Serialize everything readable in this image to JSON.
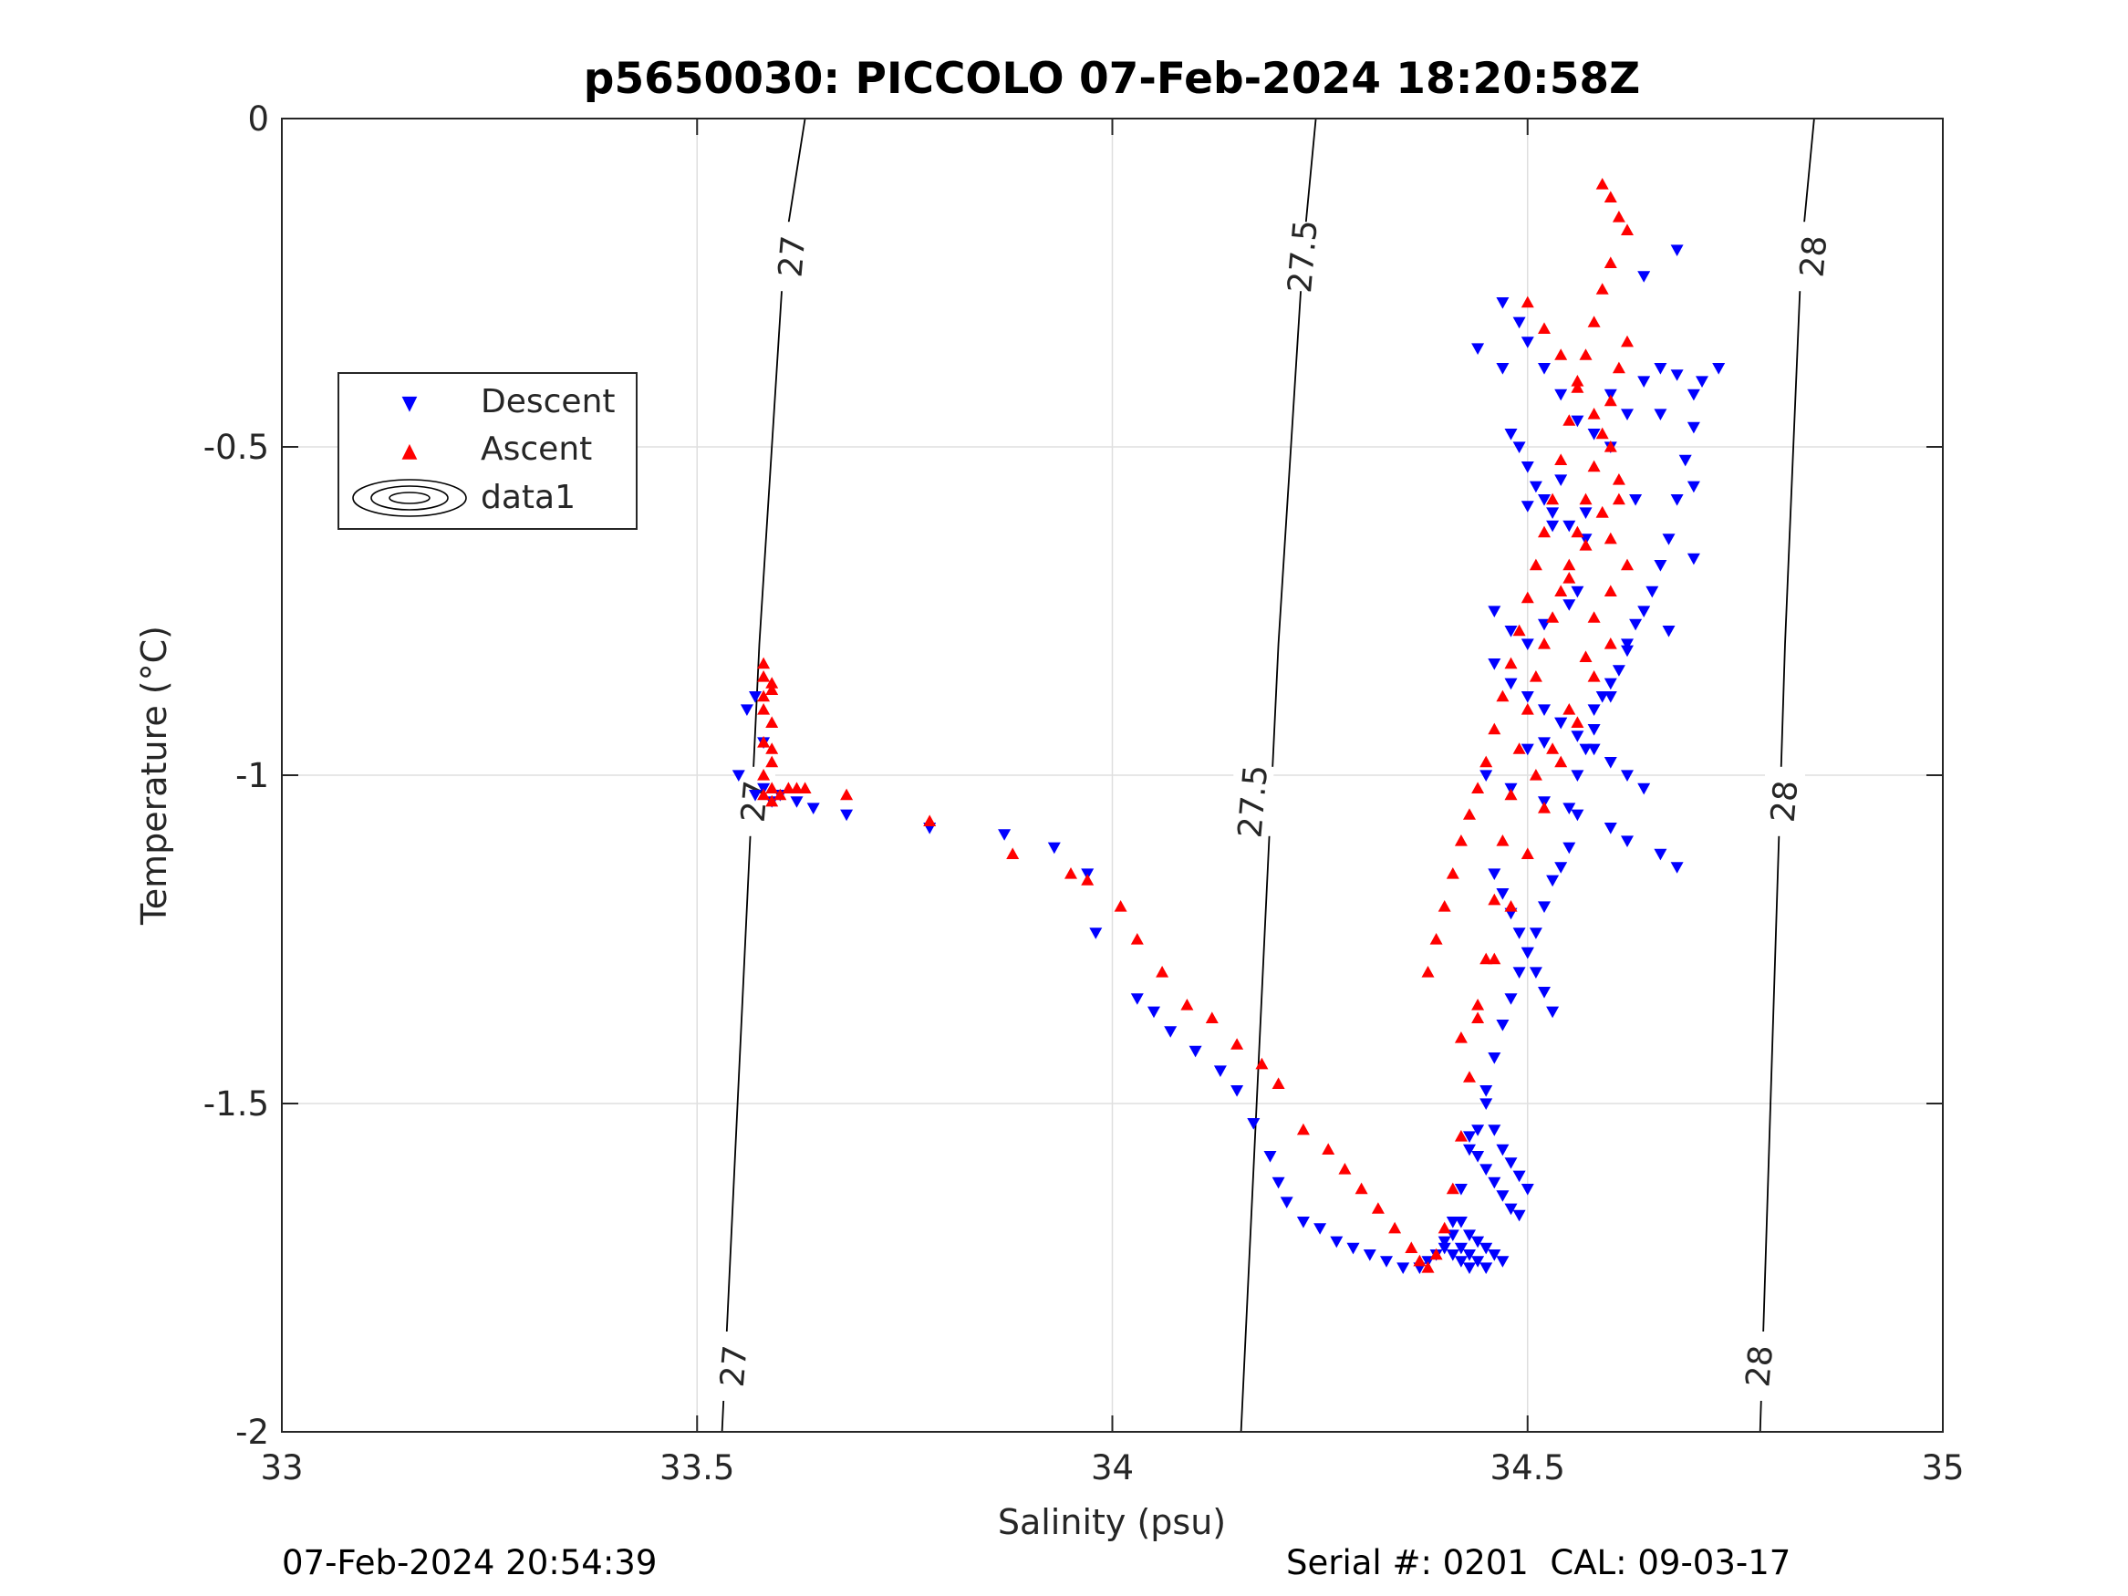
{
  "chart_data": {
    "type": "scatter",
    "title": "p5650030: PICCOLO 07-Feb-2024 18:20:58Z",
    "xlabel": "Salinity (psu)",
    "ylabel": "Temperature (°C)",
    "xlim": [
      33,
      35
    ],
    "ylim": [
      -2,
      0
    ],
    "xticks": [
      33,
      33.5,
      34,
      34.5,
      35
    ],
    "xtick_labels": [
      "33",
      "33.5",
      "34",
      "34.5",
      "35"
    ],
    "yticks": [
      0,
      -0.5,
      -1,
      -1.5,
      -2
    ],
    "ytick_labels": [
      "0",
      "-0.5",
      "-1",
      "-1.5",
      "-2"
    ],
    "grid": true,
    "legend_position": "upper-left",
    "series": [
      {
        "name": "Descent",
        "marker": "triangle-down",
        "color": "#0000ff",
        "x": [
          33.55,
          33.56,
          33.57,
          33.57,
          33.58,
          33.58,
          33.59,
          33.6,
          33.62,
          33.64,
          33.68,
          33.78,
          33.87,
          33.93,
          33.97,
          33.98,
          34.03,
          34.05,
          34.07,
          34.1,
          34.13,
          34.15,
          34.17,
          34.19,
          34.2,
          34.21,
          34.23,
          34.25,
          34.27,
          34.29,
          34.31,
          34.33,
          34.35,
          34.37,
          34.38,
          34.39,
          34.4,
          34.41,
          34.42,
          34.43,
          34.44,
          34.45,
          34.46,
          34.47,
          34.48,
          34.49,
          34.5,
          34.51,
          34.52,
          34.53,
          34.54,
          34.55,
          34.55,
          34.56,
          34.57,
          34.58,
          34.59,
          34.6,
          34.61,
          34.62,
          34.63,
          34.64,
          34.65,
          34.66,
          34.67,
          34.68,
          34.69,
          34.7,
          34.7,
          34.71,
          34.73,
          34.47,
          34.49,
          34.5,
          34.52,
          34.54,
          34.56,
          34.58,
          34.6,
          34.62,
          34.64,
          34.66,
          34.68,
          34.49,
          34.5,
          34.51,
          34.52,
          34.53,
          34.55,
          34.57,
          34.46,
          34.48,
          34.5,
          34.52,
          34.54,
          34.56,
          34.58,
          34.6,
          34.62,
          34.64,
          34.46,
          34.47,
          34.48,
          34.49,
          34.5,
          34.51,
          34.52,
          34.53,
          34.45,
          34.46,
          34.47,
          34.48,
          34.49,
          34.5,
          34.43,
          34.44,
          34.45,
          34.46,
          34.47,
          34.48,
          34.49,
          34.42,
          34.43,
          34.44,
          34.45,
          34.46,
          34.47,
          34.41,
          34.42,
          34.43,
          34.44,
          34.45,
          34.4,
          34.41,
          34.42,
          34.43,
          34.46,
          34.48,
          34.5,
          34.52,
          34.55,
          34.5,
          34.52,
          34.54,
          34.58,
          34.6,
          34.45,
          34.48,
          34.52,
          34.56,
          34.6,
          34.62,
          34.66,
          34.68,
          34.44,
          34.47,
          34.53,
          34.57,
          34.63,
          34.7,
          34.66,
          34.6,
          34.54,
          34.5,
          34.48,
          34.56,
          34.62,
          34.67,
          34.7,
          34.68,
          34.64
        ],
        "y": [
          -1.0,
          -0.9,
          -0.88,
          -1.03,
          -0.95,
          -1.02,
          -1.04,
          -1.03,
          -1.04,
          -1.05,
          -1.06,
          -1.08,
          -1.09,
          -1.11,
          -1.15,
          -1.24,
          -1.34,
          -1.36,
          -1.39,
          -1.42,
          -1.45,
          -1.48,
          -1.53,
          -1.58,
          -1.62,
          -1.65,
          -1.68,
          -1.69,
          -1.71,
          -1.72,
          -1.73,
          -1.74,
          -1.75,
          -1.75,
          -1.74,
          -1.73,
          -1.71,
          -1.68,
          -1.63,
          -1.57,
          -1.54,
          -1.48,
          -1.43,
          -1.38,
          -1.34,
          -1.3,
          -1.27,
          -1.24,
          -1.2,
          -1.16,
          -1.14,
          -1.11,
          -1.05,
          -1.0,
          -0.96,
          -0.93,
          -0.88,
          -0.86,
          -0.84,
          -0.8,
          -0.77,
          -0.75,
          -0.72,
          -0.68,
          -0.64,
          -0.58,
          -0.52,
          -0.47,
          -0.42,
          -0.4,
          -0.38,
          -0.28,
          -0.31,
          -0.34,
          -0.38,
          -0.42,
          -0.46,
          -0.48,
          -0.5,
          -0.45,
          -0.4,
          -0.38,
          -0.39,
          -0.5,
          -0.53,
          -0.56,
          -0.58,
          -0.6,
          -0.62,
          -0.64,
          -0.83,
          -0.86,
          -0.88,
          -0.9,
          -0.92,
          -0.94,
          -0.96,
          -0.98,
          -1.0,
          -1.02,
          -1.15,
          -1.18,
          -1.21,
          -1.24,
          -1.27,
          -1.3,
          -1.33,
          -1.36,
          -1.5,
          -1.54,
          -1.57,
          -1.59,
          -1.61,
          -1.63,
          -1.55,
          -1.58,
          -1.6,
          -1.62,
          -1.64,
          -1.66,
          -1.67,
          -1.68,
          -1.7,
          -1.71,
          -1.72,
          -1.73,
          -1.74,
          -1.7,
          -1.72,
          -1.73,
          -1.74,
          -1.75,
          -1.72,
          -1.73,
          -1.74,
          -1.75,
          -0.75,
          -0.78,
          -0.8,
          -0.77,
          -0.74,
          -0.96,
          -0.95,
          -0.92,
          -0.9,
          -0.88,
          -1.0,
          -1.02,
          -1.04,
          -1.06,
          -1.08,
          -1.1,
          -1.12,
          -1.14,
          -0.35,
          -0.38,
          -0.62,
          -0.6,
          -0.58,
          -0.56,
          -0.45,
          -0.42,
          -0.55,
          -0.59,
          -0.48,
          -0.72,
          -0.81,
          -0.78,
          -0.67,
          -0.2,
          -0.24
        ]
      },
      {
        "name": "Ascent",
        "marker": "triangle-up",
        "color": "#ff0000",
        "x": [
          33.58,
          33.59,
          33.58,
          33.59,
          33.58,
          33.59,
          33.58,
          33.59,
          33.58,
          33.59,
          33.58,
          33.59,
          33.58,
          33.59,
          33.6,
          33.61,
          33.62,
          33.63,
          33.68,
          33.78,
          33.88,
          33.95,
          33.97,
          34.01,
          34.03,
          34.06,
          34.09,
          34.12,
          34.15,
          34.18,
          34.2,
          34.23,
          34.26,
          34.28,
          34.3,
          34.32,
          34.34,
          34.36,
          34.37,
          34.38,
          34.39,
          34.4,
          34.41,
          34.42,
          34.43,
          34.44,
          34.45,
          34.46,
          34.47,
          34.48,
          34.49,
          34.5,
          34.51,
          34.52,
          34.53,
          34.54,
          34.55,
          34.56,
          34.57,
          34.58,
          34.59,
          34.6,
          34.61,
          34.62,
          34.59,
          34.6,
          34.61,
          34.62,
          34.6,
          34.59,
          34.58,
          34.57,
          34.56,
          34.55,
          34.54,
          34.53,
          34.52,
          34.51,
          34.5,
          34.49,
          34.48,
          34.47,
          34.46,
          34.45,
          34.44,
          34.43,
          34.42,
          34.41,
          34.4,
          34.39,
          34.38,
          34.42,
          34.44,
          34.46,
          34.48,
          34.5,
          34.52,
          34.54,
          34.56,
          34.58,
          34.6,
          34.55,
          34.57,
          34.59,
          34.61,
          34.6,
          34.58,
          34.56,
          34.54,
          34.52,
          34.5,
          34.58,
          34.6,
          34.62,
          34.57,
          34.55,
          34.53,
          34.51,
          34.59,
          34.61,
          34.6
        ],
        "y": [
          -0.85,
          -0.87,
          -0.9,
          -0.92,
          -0.95,
          -0.98,
          -1.0,
          -1.02,
          -1.03,
          -1.04,
          -0.83,
          -0.86,
          -0.88,
          -0.96,
          -1.03,
          -1.02,
          -1.02,
          -1.02,
          -1.03,
          -1.07,
          -1.12,
          -1.15,
          -1.16,
          -1.2,
          -1.25,
          -1.3,
          -1.35,
          -1.37,
          -1.41,
          -1.44,
          -1.47,
          -1.54,
          -1.57,
          -1.6,
          -1.63,
          -1.66,
          -1.69,
          -1.72,
          -1.74,
          -1.75,
          -1.73,
          -1.69,
          -1.63,
          -1.55,
          -1.46,
          -1.37,
          -1.28,
          -1.19,
          -1.1,
          -1.03,
          -0.96,
          -0.9,
          -0.85,
          -0.8,
          -0.76,
          -0.72,
          -0.68,
          -0.63,
          -0.58,
          -0.53,
          -0.48,
          -0.43,
          -0.38,
          -0.34,
          -0.1,
          -0.12,
          -0.15,
          -0.17,
          -0.22,
          -0.26,
          -0.31,
          -0.36,
          -0.41,
          -0.46,
          -0.52,
          -0.58,
          -0.63,
          -0.68,
          -0.73,
          -0.78,
          -0.83,
          -0.88,
          -0.93,
          -0.98,
          -1.02,
          -1.06,
          -1.1,
          -1.15,
          -1.2,
          -1.25,
          -1.3,
          -1.4,
          -1.35,
          -1.28,
          -1.2,
          -1.12,
          -1.05,
          -0.98,
          -0.92,
          -0.85,
          -0.8,
          -0.7,
          -0.65,
          -0.6,
          -0.55,
          -0.5,
          -0.45,
          -0.4,
          -0.36,
          -0.32,
          -0.28,
          -0.76,
          -0.72,
          -0.68,
          -0.82,
          -0.9,
          -0.96,
          -1.0,
          -0.6,
          -0.58,
          -0.64
        ]
      },
      {
        "name": "data1",
        "marker": "contour",
        "color": "#000000"
      }
    ],
    "contours": [
      {
        "level": 27,
        "label": "27",
        "x": [
          33.53,
          33.545,
          33.56,
          33.575,
          33.59,
          33.605,
          33.63
        ],
        "y": [
          -2,
          -1.6,
          -1.2,
          -0.8,
          -0.5,
          -0.2,
          0
        ]
      },
      {
        "level": 27.5,
        "label": "27.5",
        "x": [
          34.155,
          34.17,
          34.185,
          34.2,
          34.215,
          34.23,
          34.245
        ],
        "y": [
          -2,
          -1.6,
          -1.2,
          -0.8,
          -0.5,
          -0.2,
          0
        ]
      },
      {
        "level": 28,
        "label": "28",
        "x": [
          34.78,
          34.79,
          34.8,
          34.81,
          34.82,
          34.83,
          34.845
        ],
        "y": [
          -2,
          -1.6,
          -1.2,
          -0.8,
          -0.5,
          -0.2,
          0
        ]
      }
    ],
    "contour_labels": [
      {
        "text": "27",
        "x": 33.545,
        "y": -1.9
      },
      {
        "text": "27",
        "x": 33.57,
        "y": -1.04
      },
      {
        "text": "27",
        "x": 33.615,
        "y": -0.21
      },
      {
        "text": "27.5",
        "x": 34.17,
        "y": -1.04
      },
      {
        "text": "27.5",
        "x": 34.23,
        "y": -0.21
      },
      {
        "text": "28",
        "x": 34.78,
        "y": -1.9
      },
      {
        "text": "28",
        "x": 34.81,
        "y": -1.04
      },
      {
        "text": "28",
        "x": 34.845,
        "y": -0.21
      }
    ]
  },
  "footer": {
    "timestamp": "07-Feb-2024 20:54:39",
    "serial": "Serial #: 0201  CAL: 09-03-17"
  }
}
